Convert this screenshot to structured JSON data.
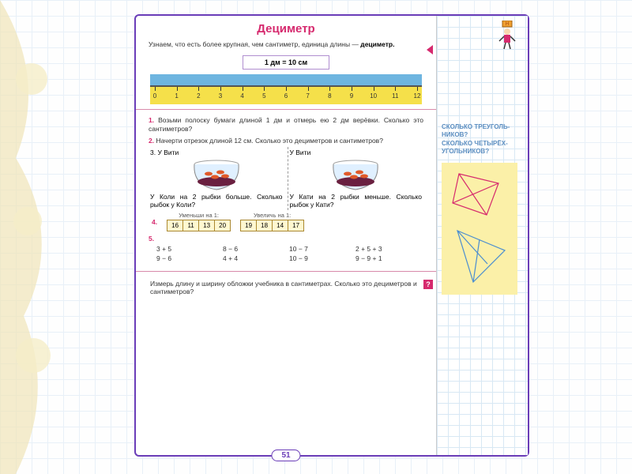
{
  "title": "Дециметр",
  "intro_text": "Узнаем, что есть более крупная, чем сантиметр, единица длины — ",
  "intro_bold": "дециметр.",
  "formula": "1 дм = 10 см",
  "ruler": {
    "bar_color": "#6eb5e0",
    "ruler_color": "#f5e04a",
    "min": 0,
    "max": 12
  },
  "tasks": {
    "t1": {
      "num": "1.",
      "text": "Возьми полоску бумаги длиной 1 дм и отмерь ею 2 дм верёвки. Сколько это сантиметров?"
    },
    "t2": {
      "num": "2.",
      "text": "Начерти отрезок длиной 12 см. Сколько это дециметров и сантиметров?"
    },
    "t3": {
      "num": "3.",
      "left_top": "У Вити",
      "left_text": "У Коли на 2 рыбки больше. Сколько рыбок у Коли?",
      "right_top": "У Вити",
      "right_text": "У Кати на 2 рыбки меньше. Сколько рыбок у Кати?"
    },
    "t4": {
      "num": "4.",
      "left_label": "Уменьши на 1:",
      "left_cells": [
        "16",
        "11",
        "13",
        "20"
      ],
      "right_label": "Увеличь на 1:",
      "right_cells": [
        "19",
        "18",
        "14",
        "17"
      ]
    },
    "t5": {
      "num": "5.",
      "rows": [
        [
          "3 + 5",
          "8 − 6",
          "10 − 7",
          "2 + 5 + 3"
        ],
        [
          "9 − 6",
          "4 + 4",
          "10 − 9",
          "9 − 9 + 1"
        ]
      ]
    },
    "footer": "Измерь длину и ширину обложки учебника в сантиметрах. Сколько это дециметров и сантиметров?"
  },
  "sidebar": {
    "question1": "СКОЛЬКО ТРЕУГОЛЬ-НИКОВ?",
    "question2": "СКОЛЬКО ЧЕТЫРЁХ-УГОЛЬНИКОВ?"
  },
  "page_number": "51",
  "colors": {
    "accent": "#d62a6e",
    "frame": "#6a3db8",
    "blue": "#5a8dc0"
  }
}
